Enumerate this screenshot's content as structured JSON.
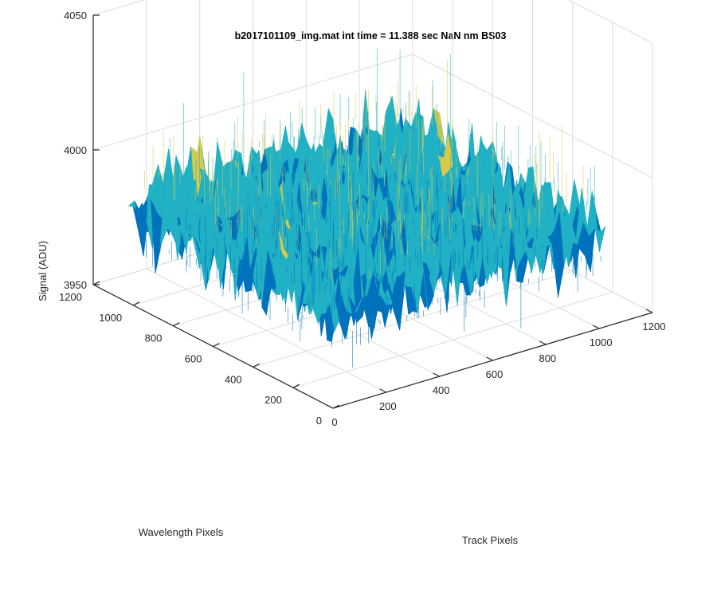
{
  "chart_data": {
    "type": "surface",
    "title": "b2017101109_img.mat int time = 11.388 sec  NaN nm BS03",
    "xlabel": "Track Pixels",
    "ylabel": "Wavelength Pixels",
    "zlabel": "Signal (ADU)",
    "xlim": [
      0,
      1200
    ],
    "ylim": [
      0,
      1200
    ],
    "zlim": [
      3950,
      4050
    ],
    "xticks": [
      0,
      200,
      400,
      600,
      800,
      1000,
      1200
    ],
    "yticks": [
      0,
      200,
      400,
      600,
      800,
      1000,
      1200
    ],
    "zticks": [
      3950,
      4000,
      4050
    ],
    "grid": true,
    "colormap": "parula",
    "colors": {
      "low": "#0072bd",
      "mid": "#21b1c4",
      "high": "#d9c94a"
    },
    "surface_extent": {
      "x": [
        1,
        1024
      ],
      "y": [
        1,
        1024
      ]
    },
    "signal_mean": 3985,
    "signal_typical_range": [
      3970,
      4000
    ],
    "signal_noise_extremes": [
      3955,
      4030
    ]
  }
}
